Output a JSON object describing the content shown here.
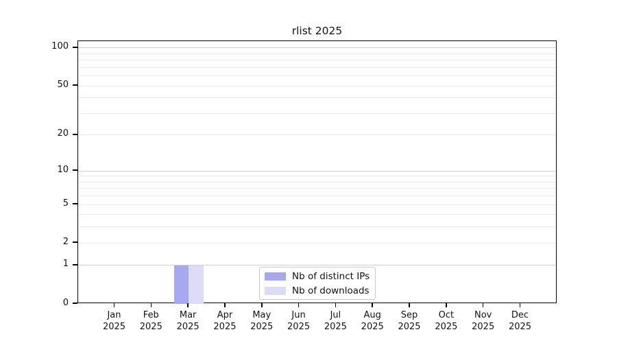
{
  "figure": {
    "background": "#ffffff",
    "text_color": "#111111",
    "axis_color": "#000000"
  },
  "chart_data": {
    "type": "bar",
    "title": "rlist 2025",
    "categories": [
      "Jan",
      "Feb",
      "Mar",
      "Apr",
      "May",
      "Jun",
      "Jul",
      "Aug",
      "Sep",
      "Oct",
      "Nov",
      "Dec"
    ],
    "category_year": "2025",
    "series": [
      {
        "name": "Nb of distinct IPs",
        "color": "#a8a8f0",
        "values": [
          0,
          0,
          1,
          0,
          0,
          0,
          0,
          0,
          0,
          0,
          0,
          0
        ]
      },
      {
        "name": "Nb of downloads",
        "color": "#dcdcf8",
        "values": [
          0,
          0,
          1,
          0,
          0,
          0,
          0,
          0,
          0,
          0,
          0,
          0
        ]
      }
    ],
    "xlabel": "",
    "ylabel": "",
    "y_axis": {
      "scale": "log1p",
      "ticks": [
        0,
        1,
        2,
        5,
        10,
        20,
        50,
        100
      ],
      "limit_top": 113
    },
    "grid": {
      "orientation": "horizontal",
      "major_values": [
        1,
        10,
        100
      ],
      "minor_values": [
        2,
        3,
        4,
        5,
        6,
        7,
        8,
        9,
        20,
        30,
        40,
        50,
        60,
        70,
        80,
        90
      ],
      "major_color": "#cfcfcf",
      "minor_color": "#e8e8e8"
    },
    "legend": {
      "position": "bottom-center",
      "border_color": "#c9c9c9"
    }
  }
}
